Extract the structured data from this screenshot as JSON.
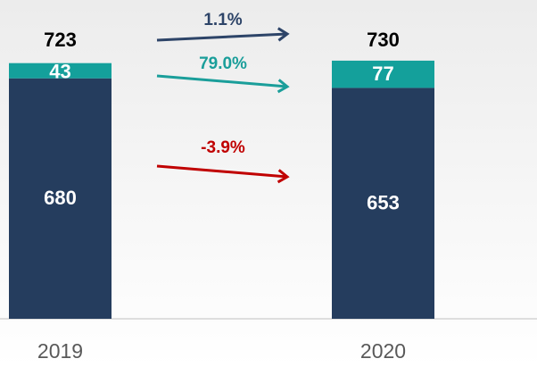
{
  "chart_data": {
    "type": "stacked_bar",
    "categories": [
      "2019",
      "2020"
    ],
    "series": [
      {
        "color": "#253d5e",
        "values": [
          680,
          653
        ]
      },
      {
        "color": "#14a09b",
        "values": [
          43,
          77
        ]
      }
    ],
    "totals": [
      723,
      730
    ],
    "ylim": [
      0,
      750
    ],
    "annotations": [
      {
        "text": "1.1%",
        "color": "#2d4468"
      },
      {
        "text": "79.0%",
        "color": "#1a9e9a"
      },
      {
        "text": "-3.9%",
        "color": "#c00000"
      }
    ]
  }
}
